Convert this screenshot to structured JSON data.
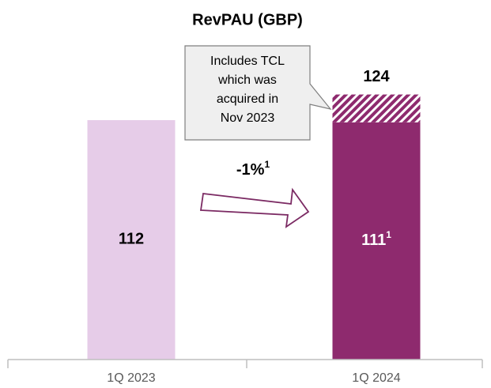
{
  "chart_data": {
    "type": "bar",
    "title": "RevPAU (GBP)",
    "categories": [
      "1Q 2023",
      "1Q 2024"
    ],
    "series": [
      {
        "values": [
          112,
          111
        ],
        "colors": [
          "#e6cce8",
          "#8e2a6e"
        ],
        "value_labels": [
          "112",
          "111"
        ],
        "label_colors": [
          "#000000",
          "#ffffff"
        ],
        "footnotes": [
          null,
          "1"
        ]
      },
      {
        "values": [
          null,
          13
        ],
        "color": "#8e2a6e",
        "pattern": "hatch"
      }
    ],
    "total_labels": [
      null,
      "124"
    ],
    "annotations": {
      "callout": [
        "Includes TCL",
        "which was",
        "acquired in",
        "Nov 2023"
      ],
      "change": "-1%",
      "change_footnote": "1"
    }
  }
}
